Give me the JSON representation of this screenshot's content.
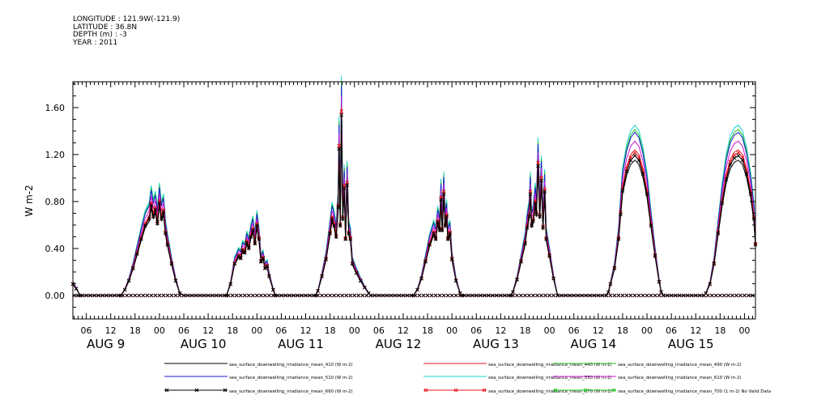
{
  "header": {
    "lines": [
      "LONGITUDE : 121.9W(-121.9)",
      "LATITUDE : 36.8N",
      "DEPTH (m) : -3",
      "YEAR : 2011"
    ]
  },
  "chart_data": {
    "type": "line",
    "title": "",
    "ylabel": "W m-2",
    "xlabel": "",
    "xlim": [
      2.7,
      170.7
    ],
    "ylim": [
      -0.2,
      1.82
    ],
    "yticks": [
      0.0,
      0.4,
      0.8,
      1.2,
      1.6
    ],
    "ytick_labels": [
      "0.00",
      "0.40",
      "0.80",
      "1.20",
      "1.60"
    ],
    "xtick_labels": [
      "06",
      "12",
      "18",
      "00",
      "06",
      "12",
      "18",
      "00",
      "06",
      "12",
      "18",
      "00",
      "06",
      "12",
      "18",
      "00",
      "06",
      "12",
      "18",
      "00",
      "06",
      "12",
      "18",
      "00",
      "06",
      "12",
      "18",
      "00"
    ],
    "xtick_hours": [
      6,
      12,
      18,
      24,
      30,
      36,
      42,
      48,
      54,
      60,
      66,
      72,
      78,
      84,
      90,
      96,
      102,
      108,
      114,
      120,
      126,
      132,
      138,
      144,
      150,
      156,
      162,
      168
    ],
    "day_labels": [
      "AUG 9",
      "AUG 10",
      "AUG 11",
      "AUG 12",
      "AUG 13",
      "AUG 14",
      "AUG 15"
    ],
    "day_label_hours": [
      12,
      36,
      60,
      84,
      108,
      132,
      156
    ],
    "grid": false,
    "legend_position": "bottom",
    "x_unit_note": "x values are hours after 00 UTC on Aug 9, 2011",
    "series": [
      {
        "name": "sea_surface_downwelling_irradiance_mean_410 (W m-2)",
        "color": "#000000",
        "marker": "",
        "scale": 0.93
      },
      {
        "name": "sea_surface_downwelling_irradiance_mean_440 (W m-2)",
        "color": "#e8141c",
        "marker": "",
        "scale": 1.0
      },
      {
        "name": "sea_surface_downwelling_irradiance_mean_490 (W m-2)",
        "color": "#22c322",
        "marker": "",
        "scale": 1.14
      },
      {
        "name": "sea_surface_downwelling_irradiance_mean_510 (W m-2)",
        "color": "#1a1ad6",
        "marker": "",
        "scale": 1.12
      },
      {
        "name": "sea_surface_downwelling_irradiance_mean_550 (W m-2)",
        "color": "#18d2d2",
        "marker": "",
        "scale": 1.17
      },
      {
        "name": "sea_surface_downwelling_irradiance_mean_610 (W m-2)",
        "color": "#d21ad2",
        "marker": "",
        "scale": 1.06
      },
      {
        "name": "sea_surface_downwelling_irradiance_mean_660 (W m-2)",
        "color": "#000000",
        "marker": "x",
        "scale": 0.96
      },
      {
        "name": "sea_surface_downwelling_irradiance_mean_670 (W m-2)",
        "color": "#e8141c",
        "marker": "x",
        "scale": 0.98
      },
      {
        "name": "sea_surface_downwelling_irradiance_mean_700 (1 m-2) No Valid Data",
        "color": "#22c322",
        "marker": "x",
        "scale": 0
      }
    ],
    "reference_series_points": [
      [
        2.7,
        0.1
      ],
      [
        3.5,
        0.06
      ],
      [
        4.5,
        0.0
      ],
      [
        14.5,
        0.0
      ],
      [
        15.5,
        0.05
      ],
      [
        16.5,
        0.13
      ],
      [
        17.5,
        0.24
      ],
      [
        18.5,
        0.37
      ],
      [
        19.5,
        0.5
      ],
      [
        20.5,
        0.62
      ],
      [
        21.5,
        0.68
      ],
      [
        22,
        0.8
      ],
      [
        22.5,
        0.7
      ],
      [
        23,
        0.76
      ],
      [
        23.5,
        0.64
      ],
      [
        24,
        0.82
      ],
      [
        24.5,
        0.68
      ],
      [
        25,
        0.74
      ],
      [
        25.5,
        0.55
      ],
      [
        26,
        0.45
      ],
      [
        27,
        0.28
      ],
      [
        28,
        0.13
      ],
      [
        29,
        0.02
      ],
      [
        30,
        0.0
      ],
      [
        40.5,
        0.0
      ],
      [
        41.5,
        0.1
      ],
      [
        42.5,
        0.28
      ],
      [
        43.5,
        0.35
      ],
      [
        44,
        0.33
      ],
      [
        44.5,
        0.4
      ],
      [
        45,
        0.38
      ],
      [
        45.5,
        0.47
      ],
      [
        46,
        0.42
      ],
      [
        46.5,
        0.52
      ],
      [
        47,
        0.58
      ],
      [
        47.5,
        0.46
      ],
      [
        48,
        0.62
      ],
      [
        48.5,
        0.5
      ],
      [
        49,
        0.3
      ],
      [
        49.5,
        0.33
      ],
      [
        50,
        0.24
      ],
      [
        50.5,
        0.26
      ],
      [
        51,
        0.17
      ],
      [
        52,
        0.05
      ],
      [
        52.5,
        0.0
      ],
      [
        62.5,
        0.0
      ],
      [
        63,
        0.04
      ],
      [
        64,
        0.17
      ],
      [
        65,
        0.32
      ],
      [
        66,
        0.55
      ],
      [
        66.5,
        0.68
      ],
      [
        67,
        0.62
      ],
      [
        67.5,
        0.52
      ],
      [
        68,
        0.78
      ],
      [
        68.2,
        1.3
      ],
      [
        68.5,
        0.62
      ],
      [
        68.8,
        1.6
      ],
      [
        69.1,
        0.68
      ],
      [
        69.5,
        0.95
      ],
      [
        69.8,
        0.5
      ],
      [
        70.2,
        0.98
      ],
      [
        70.6,
        0.55
      ],
      [
        71,
        0.5
      ],
      [
        71.5,
        0.28
      ],
      [
        72.5,
        0.2
      ],
      [
        73.5,
        0.13
      ],
      [
        74.5,
        0.07
      ],
      [
        75.5,
        0.02
      ],
      [
        76,
        0.0
      ],
      [
        86.5,
        0.0
      ],
      [
        87.5,
        0.05
      ],
      [
        88.5,
        0.15
      ],
      [
        89.5,
        0.3
      ],
      [
        90.5,
        0.45
      ],
      [
        91.5,
        0.55
      ],
      [
        92,
        0.5
      ],
      [
        92.5,
        0.65
      ],
      [
        93,
        0.58
      ],
      [
        93.3,
        0.85
      ],
      [
        93.6,
        0.58
      ],
      [
        94,
        0.9
      ],
      [
        94.3,
        0.62
      ],
      [
        94.7,
        0.7
      ],
      [
        95,
        0.5
      ],
      [
        95.5,
        0.55
      ],
      [
        96,
        0.32
      ],
      [
        97,
        0.13
      ],
      [
        98,
        0.02
      ],
      [
        98.5,
        0.0
      ],
      [
        110.5,
        0.0
      ],
      [
        111,
        0.03
      ],
      [
        112,
        0.14
      ],
      [
        113,
        0.3
      ],
      [
        114,
        0.46
      ],
      [
        114.5,
        0.6
      ],
      [
        115,
        0.7
      ],
      [
        115.3,
        0.9
      ],
      [
        115.6,
        0.62
      ],
      [
        116,
        0.66
      ],
      [
        116.5,
        0.82
      ],
      [
        116.8,
        0.72
      ],
      [
        117.2,
        1.15
      ],
      [
        117.6,
        0.7
      ],
      [
        118,
        1.02
      ],
      [
        118.4,
        0.6
      ],
      [
        118.8,
        0.92
      ],
      [
        119.2,
        0.5
      ],
      [
        120,
        0.35
      ],
      [
        121,
        0.15
      ],
      [
        122,
        0.0
      ],
      [
        134,
        0.0
      ],
      [
        134.5,
        0.03
      ],
      [
        135,
        0.1
      ],
      [
        136,
        0.24
      ],
      [
        137,
        0.5
      ],
      [
        137.5,
        0.72
      ],
      [
        138,
        0.93
      ],
      [
        139,
        1.1
      ],
      [
        140,
        1.2
      ],
      [
        141,
        1.24
      ],
      [
        142,
        1.2
      ],
      [
        143,
        1.08
      ],
      [
        144,
        0.9
      ],
      [
        145,
        0.62
      ],
      [
        146,
        0.35
      ],
      [
        147,
        0.12
      ],
      [
        147.5,
        0.03
      ],
      [
        148,
        0.0
      ],
      [
        158,
        0.0
      ],
      [
        158.5,
        0.02
      ],
      [
        159.5,
        0.1
      ],
      [
        160.5,
        0.28
      ],
      [
        161.5,
        0.55
      ],
      [
        162.5,
        0.82
      ],
      [
        163.5,
        1.03
      ],
      [
        164.5,
        1.16
      ],
      [
        165.5,
        1.22
      ],
      [
        166.5,
        1.24
      ],
      [
        167.5,
        1.2
      ],
      [
        168.5,
        1.08
      ],
      [
        169.5,
        0.9
      ],
      [
        170.3,
        0.68
      ],
      [
        170.7,
        0.45
      ]
    ]
  }
}
